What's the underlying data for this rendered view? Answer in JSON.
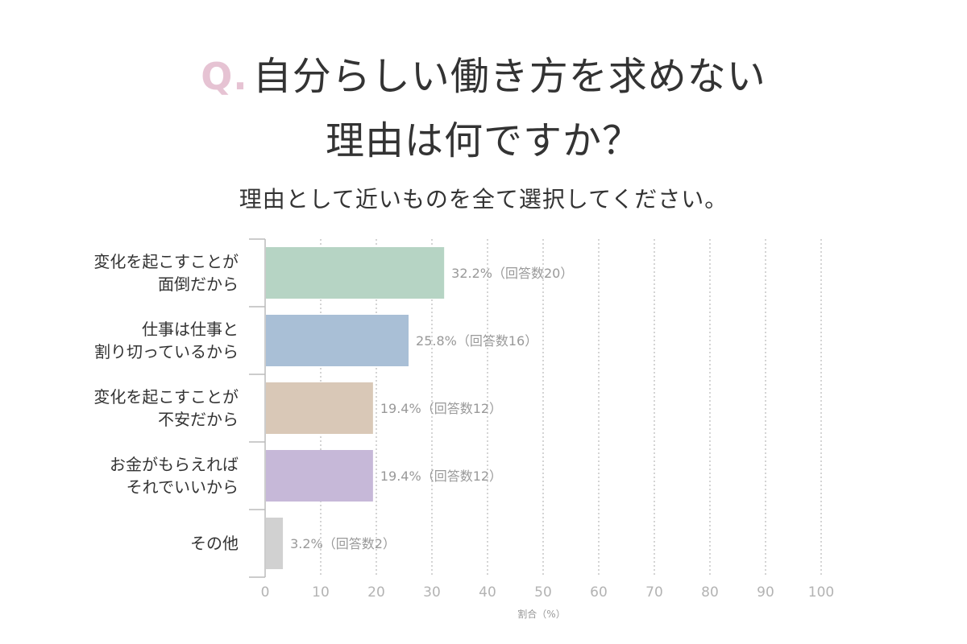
{
  "title": {
    "q_mark": "Q.",
    "line1": "自分らしい働き方を求めない",
    "line2": "理由は何ですか？"
  },
  "subtitle": "理由として近いものを全て選択してください。",
  "colors": {
    "q_mark": "#e6c3d3",
    "grid": "#aaaaaa",
    "axis": "#bbbbbb",
    "tick_text": "#b3b3b3",
    "bar_label": "#999999",
    "category_text": "#333333"
  },
  "chart_data": {
    "type": "bar",
    "orientation": "horizontal",
    "categories": [
      [
        "変化を起こすことが",
        "面倒だから"
      ],
      [
        "仕事は仕事と",
        "割り切っているから"
      ],
      [
        "変化を起こすことが",
        "不安だから"
      ],
      [
        "お金がもらえれば",
        "それでいいから"
      ],
      [
        "その他"
      ]
    ],
    "values": [
      32.2,
      25.8,
      19.4,
      19.4,
      3.2
    ],
    "bar_labels": [
      "32.2%（回答数20）",
      "25.8%（回答数16）",
      "19.4%（回答数12）",
      "19.4%（回答数12）",
      "3.2%（回答数2）"
    ],
    "bar_colors": [
      "#b6d4c4",
      "#a9bfd6",
      "#d9c8b7",
      "#c6b8d8",
      "#d1d1d1"
    ],
    "xlabel": "割合（%）",
    "ylabel": "",
    "xlim": [
      0,
      100
    ],
    "xticks": [
      "0",
      "10",
      "20",
      "30",
      "40",
      "50",
      "60",
      "70",
      "80",
      "90",
      "100"
    ],
    "grid": "vertical-dotted",
    "legend": "none"
  }
}
